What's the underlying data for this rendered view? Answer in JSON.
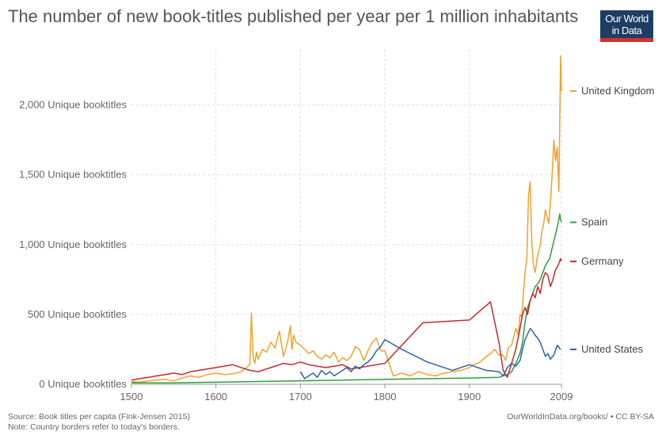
{
  "header": {
    "title": "The number of new book-titles published per year per 1 million inhabitants",
    "logo_line1": "Our World",
    "logo_line2": "in Data"
  },
  "footer": {
    "source": "Source: Book titles per capita (Fink-Jensen 2015)",
    "note": "Note: Country borders refer to today's borders.",
    "credit": "OurWorldInData.org/books/ • CC BY-SA"
  },
  "chart_data": {
    "type": "line",
    "xlabel": "",
    "ylabel": "",
    "xlim": [
      1500,
      2009
    ],
    "ylim": [
      0,
      2400
    ],
    "x_ticks": [
      1500,
      1600,
      1700,
      1800,
      1900,
      2009
    ],
    "x_tick_labels": [
      "1500",
      "1600",
      "1700",
      "1800",
      "1900",
      "2009"
    ],
    "y_ticks": [
      0,
      500,
      1000,
      1500,
      2000
    ],
    "y_tick_labels": [
      "0 Unique booktitles",
      "500 Unique booktitles",
      "1,000 Unique booktitles",
      "1,500 Unique booktitles",
      "2,000 Unique booktitles"
    ],
    "grid": true,
    "legend_placement": "right",
    "series": [
      {
        "name": "United Kingdom",
        "color": "#f0a22c",
        "label_value": 2100,
        "x": [
          1500,
          1510,
          1520,
          1530,
          1540,
          1550,
          1560,
          1570,
          1580,
          1590,
          1600,
          1610,
          1620,
          1630,
          1640,
          1641,
          1642,
          1644,
          1646,
          1648,
          1650,
          1655,
          1660,
          1665,
          1670,
          1675,
          1680,
          1685,
          1688,
          1690,
          1692,
          1695,
          1700,
          1705,
          1710,
          1715,
          1720,
          1725,
          1730,
          1735,
          1740,
          1745,
          1750,
          1755,
          1760,
          1765,
          1770,
          1775,
          1780,
          1785,
          1790,
          1795,
          1800,
          1810,
          1820,
          1830,
          1840,
          1850,
          1860,
          1870,
          1880,
          1890,
          1900,
          1905,
          1910,
          1915,
          1920,
          1925,
          1930,
          1935,
          1940,
          1943,
          1946,
          1950,
          1955,
          1958,
          1960,
          1962,
          1964,
          1966,
          1968,
          1970,
          1972,
          1974,
          1976,
          1978,
          1980,
          1982,
          1984,
          1986,
          1988,
          1990,
          1992,
          1994,
          1996,
          1998,
          2000,
          2002,
          2004,
          2006,
          2008,
          2009
        ],
        "y": [
          20,
          15,
          25,
          30,
          35,
          25,
          45,
          60,
          50,
          70,
          80,
          70,
          75,
          90,
          140,
          300,
          510,
          200,
          150,
          230,
          180,
          250,
          230,
          300,
          260,
          380,
          200,
          310,
          420,
          250,
          350,
          300,
          280,
          250,
          220,
          240,
          200,
          180,
          210,
          190,
          230,
          160,
          190,
          170,
          200,
          270,
          250,
          170,
          240,
          300,
          330,
          240,
          240,
          60,
          80,
          60,
          90,
          70,
          60,
          80,
          90,
          100,
          120,
          140,
          150,
          170,
          200,
          220,
          250,
          210,
          210,
          170,
          260,
          280,
          400,
          350,
          500,
          480,
          650,
          800,
          900,
          1350,
          1450,
          1000,
          850,
          800,
          900,
          950,
          1000,
          1100,
          1150,
          1250,
          1200,
          1150,
          1300,
          1500,
          1750,
          1600,
          1700,
          1380,
          2350,
          2100
        ]
      },
      {
        "name": "Spain",
        "color": "#2c9e3d",
        "label_value": 1160,
        "x": [
          1500,
          1550,
          1600,
          1650,
          1700,
          1750,
          1800,
          1850,
          1900,
          1935,
          1940,
          1945,
          1950,
          1955,
          1960,
          1963,
          1966,
          1969,
          1972,
          1975,
          1978,
          1981,
          1984,
          1987,
          1990,
          1993,
          1995,
          1997,
          1999,
          2001,
          2003,
          2005,
          2007,
          2008,
          2009
        ],
        "y": [
          10,
          10,
          15,
          20,
          25,
          30,
          35,
          40,
          45,
          50,
          60,
          70,
          90,
          150,
          220,
          300,
          450,
          550,
          600,
          650,
          700,
          720,
          750,
          800,
          850,
          880,
          900,
          950,
          1000,
          1050,
          1100,
          1150,
          1220,
          1180,
          1160
        ]
      },
      {
        "name": "Germany",
        "color": "#c5292d",
        "label_value": 880,
        "x": [
          1500,
          1510,
          1520,
          1530,
          1540,
          1550,
          1560,
          1570,
          1580,
          1590,
          1600,
          1610,
          1620,
          1630,
          1640,
          1650,
          1660,
          1670,
          1680,
          1690,
          1700,
          1710,
          1720,
          1730,
          1740,
          1750,
          1760,
          1770,
          1780,
          1790,
          1800,
          1845,
          1900,
          1925,
          1935,
          1940,
          1945,
          1950,
          1955,
          1960,
          1963,
          1966,
          1969,
          1972,
          1975,
          1978,
          1981,
          1984,
          1987,
          1990,
          1993,
          1996,
          1999,
          2002,
          2005,
          2008,
          2009
        ],
        "y": [
          30,
          40,
          50,
          60,
          70,
          80,
          70,
          90,
          100,
          110,
          120,
          130,
          140,
          120,
          100,
          90,
          110,
          130,
          150,
          140,
          160,
          140,
          130,
          120,
          130,
          140,
          110,
          120,
          130,
          140,
          150,
          440,
          460,
          590,
          300,
          100,
          50,
          150,
          250,
          400,
          500,
          550,
          500,
          600,
          650,
          620,
          700,
          650,
          750,
          800,
          780,
          700,
          750,
          820,
          850,
          900,
          880
        ]
      },
      {
        "name": "United States",
        "color": "#2d60a8",
        "label_value": 250,
        "x": [
          1700,
          1705,
          1710,
          1715,
          1720,
          1725,
          1730,
          1735,
          1740,
          1745,
          1750,
          1755,
          1760,
          1765,
          1770,
          1775,
          1780,
          1785,
          1790,
          1795,
          1800,
          1820,
          1850,
          1880,
          1900,
          1920,
          1935,
          1940,
          1945,
          1950,
          1955,
          1960,
          1963,
          1966,
          1969,
          1972,
          1975,
          1978,
          1981,
          1984,
          1987,
          1990,
          1993,
          1996,
          2000,
          2004,
          2008
        ],
        "y": [
          90,
          40,
          60,
          80,
          50,
          100,
          70,
          90,
          60,
          80,
          100,
          120,
          90,
          130,
          110,
          140,
          160,
          190,
          240,
          270,
          320,
          250,
          160,
          100,
          140,
          100,
          90,
          60,
          120,
          150,
          130,
          170,
          250,
          320,
          360,
          400,
          380,
          350,
          330,
          300,
          250,
          200,
          220,
          180,
          210,
          280,
          250
        ]
      }
    ]
  }
}
